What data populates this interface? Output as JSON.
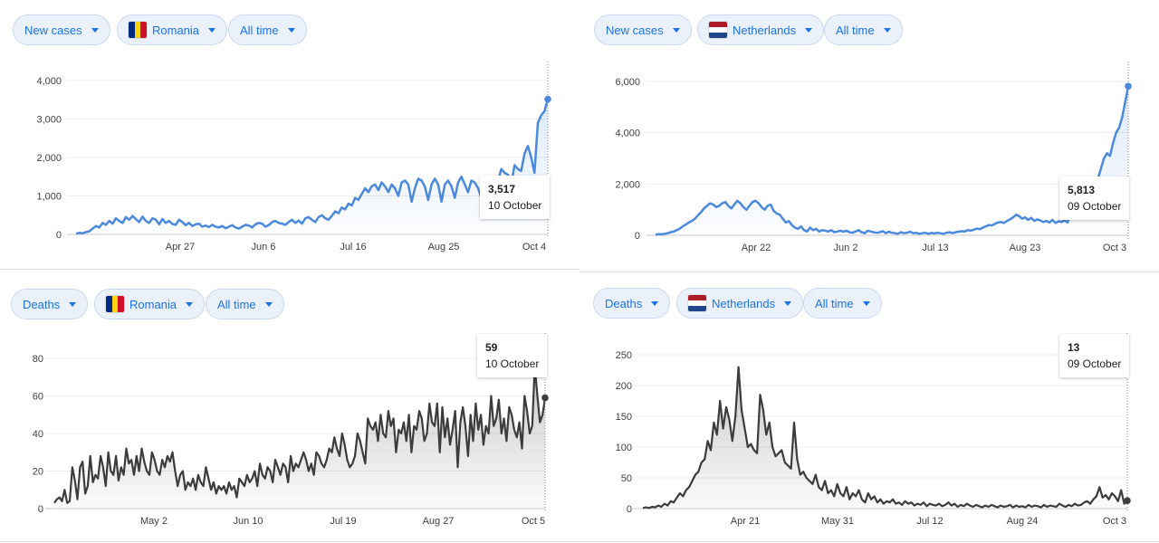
{
  "colors": {
    "cases": "#4a89dc",
    "deaths": "#3c3c3c",
    "chip_text": "#1a73e8"
  },
  "icons": {
    "dropdown": "caret-down-icon",
    "ro_flag": "romania-flag-icon",
    "nl_flag": "netherlands-flag-icon"
  },
  "panels": {
    "tl": {
      "metric_label": "New cases",
      "country_label": "Romania",
      "range_label": "All time",
      "tooltip": {
        "value": "3,517",
        "date": "10 October"
      }
    },
    "tr": {
      "metric_label": "New cases",
      "country_label": "Netherlands",
      "range_label": "All time",
      "tooltip": {
        "value": "5,813",
        "date": "09 October"
      }
    },
    "bl": {
      "metric_label": "Deaths",
      "country_label": "Romania",
      "range_label": "All time",
      "tooltip": {
        "value": "59",
        "date": "10 October"
      }
    },
    "br": {
      "metric_label": "Deaths",
      "country_label": "Netherlands",
      "range_label": "All time",
      "tooltip": {
        "value": "13",
        "date": "09 October"
      }
    }
  },
  "chart_data": [
    {
      "type": "area",
      "series": [
        {
          "values": [
            20,
            40,
            30,
            60,
            80,
            150,
            220,
            180,
            300,
            250,
            350,
            280,
            420,
            350,
            300,
            450,
            380,
            480,
            400,
            320,
            460,
            350,
            300,
            420,
            380,
            260,
            400,
            300,
            350,
            270,
            250,
            380,
            320,
            240,
            300,
            220,
            260,
            280,
            200,
            230,
            190,
            250,
            200,
            180,
            220,
            160,
            200,
            240,
            180,
            150,
            200,
            250,
            230,
            180,
            260,
            300,
            280,
            200,
            240,
            320,
            350,
            300,
            280,
            250,
            320,
            380,
            300,
            360,
            280,
            420,
            450,
            380,
            320,
            450,
            500,
            420,
            380,
            480,
            600,
            550,
            700,
            650,
            800,
            750,
            950,
            900,
            1050,
            1200,
            1100,
            1250,
            1300,
            1150,
            1350,
            1250,
            1100,
            1300,
            1200,
            1000,
            1350,
            1400,
            1300,
            850,
            1200,
            1450,
            1400,
            1250,
            900,
            1300,
            1450,
            1300,
            850,
            1300,
            1400,
            1250,
            950,
            1350,
            1500,
            1300,
            1100,
            1400,
            1350,
            1200,
            950,
            1300,
            1450,
            1250,
            1100,
            1400,
            1700,
            1600,
            1550,
            1300,
            1800,
            1700,
            1650,
            2100,
            2300,
            2000,
            1600,
            2900,
            3100,
            3200,
            3517
          ]
        }
      ],
      "x_tick_labels": [
        "Apr 27",
        "Jun 6",
        "Jul 16",
        "Aug 25",
        "Oct 4"
      ],
      "y_tick_labels": [
        "0",
        "1,000",
        "2,000",
        "3,000",
        "4,000"
      ],
      "ylim": [
        0,
        4000
      ],
      "grid": true
    },
    {
      "type": "area",
      "series": [
        {
          "values": [
            20,
            50,
            40,
            60,
            80,
            120,
            150,
            200,
            260,
            350,
            420,
            500,
            560,
            650,
            780,
            900,
            1050,
            1150,
            1250,
            1200,
            1100,
            1150,
            1250,
            1300,
            1150,
            1050,
            1200,
            1350,
            1250,
            1100,
            1000,
            1150,
            1300,
            1350,
            1250,
            1100,
            1000,
            1150,
            1200,
            950,
            850,
            800,
            650,
            500,
            550,
            400,
            300,
            250,
            350,
            200,
            150,
            300,
            200,
            250,
            150,
            200,
            180,
            150,
            200,
            120,
            150,
            180,
            140,
            180,
            120,
            100,
            150,
            200,
            120,
            80,
            180,
            150,
            120,
            100,
            120,
            160,
            80,
            140,
            100,
            80,
            60,
            120,
            80,
            100,
            140,
            80,
            100,
            60,
            80,
            100,
            60,
            90,
            70,
            100,
            80,
            60,
            100,
            120,
            80,
            120,
            140,
            160,
            150,
            200,
            180,
            220,
            260,
            240,
            300,
            350,
            400,
            380,
            450,
            500,
            520,
            480,
            560,
            620,
            700,
            800,
            750,
            650,
            700,
            600,
            680,
            560,
            620,
            580,
            520,
            560,
            500,
            600,
            480,
            550,
            520,
            580,
            500,
            900,
            700,
            850,
            1000,
            900,
            1100,
            1350,
            1500,
            1800,
            2200,
            2600,
            3000,
            3200,
            3100,
            3600,
            4000,
            4200,
            4600,
            5200,
            5813
          ]
        }
      ],
      "x_tick_labels": [
        "Apr 22",
        "Jun 2",
        "Jul 13",
        "Aug 23",
        "Oct 3"
      ],
      "y_tick_labels": [
        "0",
        "2,000",
        "4,000",
        "6,000"
      ],
      "ylim": [
        0,
        6000
      ],
      "grid": true
    },
    {
      "type": "area",
      "series": [
        {
          "values": [
            3,
            5,
            6,
            4,
            10,
            3,
            4,
            22,
            15,
            5,
            22,
            25,
            8,
            12,
            28,
            14,
            18,
            16,
            28,
            22,
            12,
            30,
            20,
            18,
            28,
            15,
            22,
            18,
            32,
            24,
            26,
            18,
            28,
            20,
            32,
            25,
            20,
            18,
            30,
            26,
            20,
            18,
            26,
            22,
            28,
            25,
            30,
            20,
            12,
            18,
            20,
            10,
            14,
            12,
            16,
            10,
            18,
            14,
            12,
            22,
            16,
            10,
            14,
            8,
            12,
            10,
            12,
            8,
            14,
            10,
            12,
            6,
            16,
            14,
            12,
            18,
            14,
            16,
            20,
            12,
            24,
            18,
            16,
            22,
            20,
            14,
            26,
            22,
            18,
            24,
            22,
            14,
            28,
            20,
            24,
            22,
            26,
            30,
            26,
            20,
            24,
            18,
            30,
            28,
            24,
            22,
            26,
            32,
            30,
            38,
            32,
            28,
            40,
            34,
            26,
            22,
            24,
            28,
            40,
            36,
            30,
            24,
            48,
            44,
            42,
            46,
            36,
            50,
            40,
            38,
            52,
            44,
            48,
            30,
            42,
            40,
            46,
            36,
            50,
            30,
            44,
            42,
            52,
            48,
            36,
            40,
            56,
            46,
            44,
            56,
            30,
            54,
            38,
            48,
            34,
            42,
            52,
            22,
            46,
            54,
            44,
            28,
            50,
            36,
            56,
            42,
            50,
            34,
            44,
            40,
            60,
            44,
            48,
            58,
            40,
            48,
            36,
            54,
            50,
            42,
            38,
            46,
            32,
            60,
            52,
            40,
            44,
            76,
            60,
            46,
            50,
            59
          ]
        }
      ],
      "x_tick_labels": [
        "May 2",
        "Jun 10",
        "Jul 19",
        "Aug 27",
        "Oct 5"
      ],
      "y_tick_labels": [
        "0",
        "20",
        "40",
        "60",
        "80"
      ],
      "ylim": [
        0,
        80
      ],
      "grid": true
    },
    {
      "type": "area",
      "series": [
        {
          "values": [
            1,
            2,
            1,
            3,
            2,
            5,
            3,
            8,
            5,
            12,
            10,
            18,
            25,
            20,
            30,
            35,
            45,
            55,
            60,
            75,
            80,
            110,
            95,
            140,
            120,
            175,
            130,
            165,
            145,
            110,
            150,
            230,
            160,
            130,
            100,
            105,
            95,
            90,
            185,
            160,
            120,
            140,
            100,
            85,
            90,
            95,
            75,
            70,
            65,
            140,
            80,
            55,
            60,
            50,
            45,
            40,
            55,
            35,
            30,
            45,
            25,
            30,
            20,
            40,
            25,
            20,
            35,
            15,
            25,
            20,
            30,
            15,
            10,
            25,
            15,
            20,
            10,
            15,
            8,
            12,
            10,
            15,
            8,
            10,
            6,
            12,
            8,
            10,
            5,
            8,
            6,
            10,
            4,
            8,
            6,
            5,
            8,
            4,
            6,
            10,
            5,
            8,
            3,
            6,
            4,
            8,
            5,
            3,
            6,
            4,
            2,
            5,
            3,
            6,
            4,
            2,
            5,
            3,
            4,
            6,
            2,
            5,
            3,
            4,
            2,
            6,
            3,
            5,
            4,
            2,
            6,
            3,
            5,
            4,
            3,
            8,
            5,
            3,
            6,
            4,
            8,
            5,
            6,
            10,
            12,
            8,
            15,
            20,
            35,
            18,
            22,
            15,
            25,
            20,
            12,
            30,
            8,
            13
          ]
        }
      ],
      "x_tick_labels": [
        "Apr 21",
        "May 31",
        "Jul 12",
        "Aug 24",
        "Oct 3"
      ],
      "y_tick_labels": [
        "0",
        "50",
        "100",
        "150",
        "200",
        "250"
      ],
      "ylim": [
        0,
        250
      ],
      "grid": true
    }
  ]
}
